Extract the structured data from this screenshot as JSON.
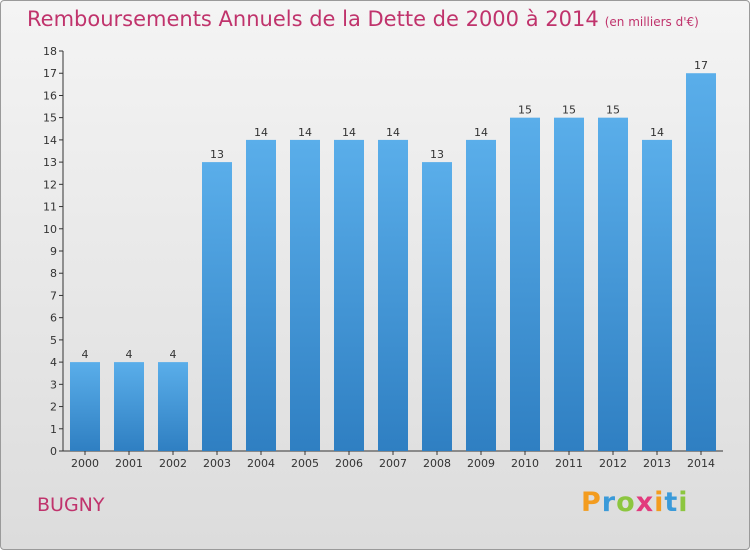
{
  "title": "Remboursements Annuels de la Dette de 2000 à 2014",
  "unit_note": "(en milliers d'€)",
  "commune": "BUGNY",
  "logo": {
    "text": "Proxiti",
    "letters": [
      "P",
      "r",
      "o",
      "x",
      "i",
      "t",
      "i"
    ],
    "colors": [
      "#f39c1f",
      "#3a9ad9",
      "#8cc63f",
      "#e23a7d",
      "#f39c1f",
      "#3a9ad9",
      "#8cc63f"
    ]
  },
  "colors": {
    "title": "#c0336c",
    "bar_top": "#5aaeea",
    "bar_bottom": "#2f7fc2",
    "axis": "#333333",
    "label": "#333333"
  },
  "chart_data": {
    "type": "bar",
    "categories": [
      "2000",
      "2001",
      "2002",
      "2003",
      "2004",
      "2005",
      "2006",
      "2007",
      "2008",
      "2009",
      "2010",
      "2011",
      "2012",
      "2013",
      "2014"
    ],
    "values": [
      4,
      4,
      4,
      13,
      14,
      14,
      14,
      14,
      13,
      14,
      15,
      15,
      15,
      14,
      17
    ],
    "ylim": [
      0,
      18
    ],
    "yticks": [
      0,
      1,
      2,
      3,
      4,
      5,
      6,
      7,
      8,
      9,
      10,
      11,
      12,
      13,
      14,
      15,
      16,
      17,
      18
    ],
    "grid": false,
    "legend": "none"
  }
}
